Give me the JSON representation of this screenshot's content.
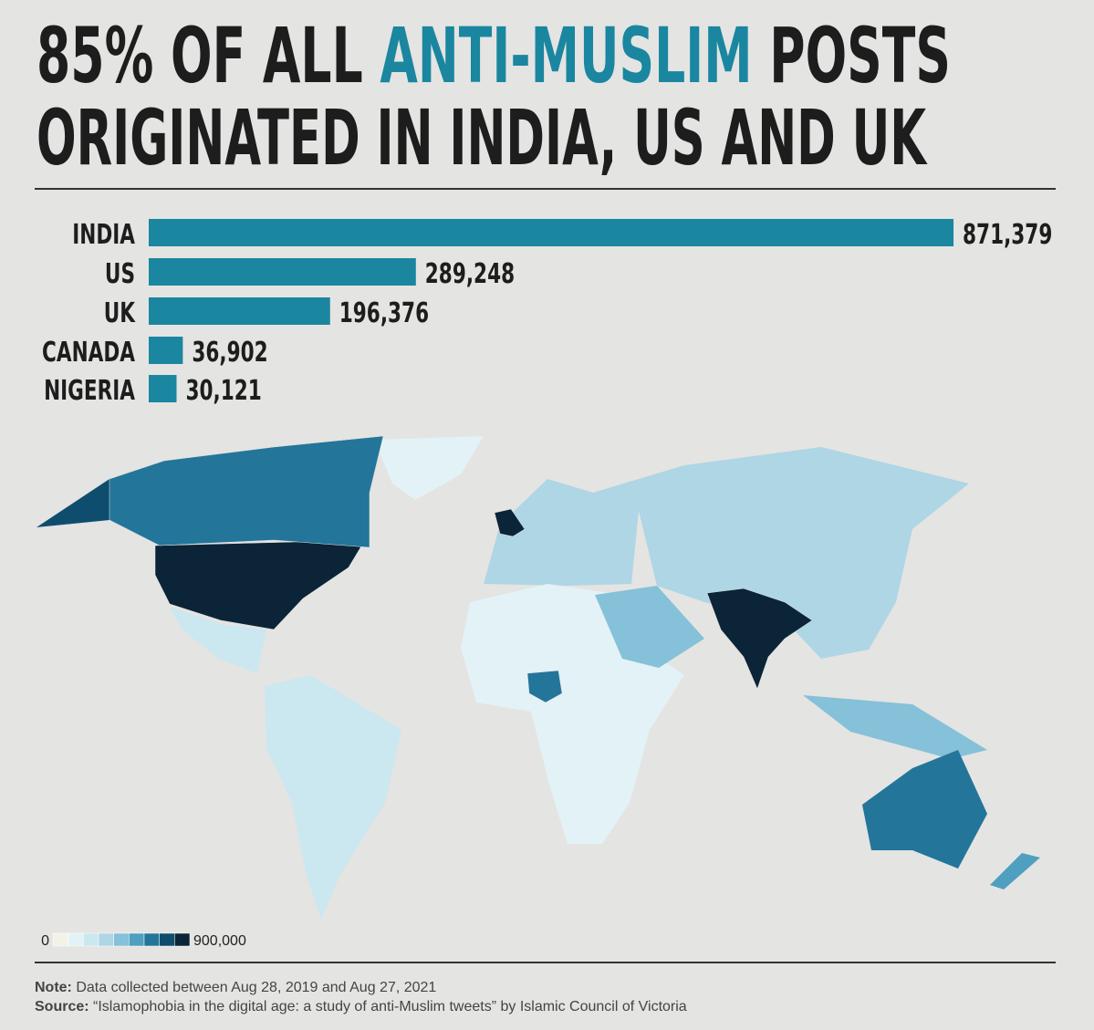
{
  "chart_data": {
    "type": "bar",
    "title": {
      "line1": [
        "85% OF ALL",
        "ANTI-MUSLIM",
        "POSTS"
      ],
      "line2": "ORIGINATED IN INDIA, US AND UK"
    },
    "categories": [
      "INDIA",
      "US",
      "UK",
      "CANADA",
      "NIGERIA"
    ],
    "values": [
      871379,
      289248,
      196376,
      36902,
      30121
    ],
    "value_labels": [
      "871,379",
      "289,248",
      "196,376",
      "36,902",
      "30,121"
    ],
    "color": "#1a86a0",
    "title_color": "#1d1d1d",
    "highlight_color": "#1a86a0",
    "legend": {
      "ticks": [
        0,
        {
          "value": 900000,
          "label": "900,000"
        }
      ],
      "colors": [
        "#f4f1e6",
        "#e3f2f6",
        "#cbe7f0",
        "#aed6e5",
        "#85c1d8",
        "#4f9fc0",
        "#23759a",
        "#0f4d6e",
        "#0b2437"
      ],
      "log_scale": true
    },
    "note": {
      "label": "Note:",
      "text": "Data collected between Aug 28, 2019 and Aug 27, 2021"
    },
    "source": {
      "label": "Source:",
      "text": "“Islamophobia in the digital age: a study of anti-Muslim tweets” by Islamic Council of Victoria"
    }
  }
}
